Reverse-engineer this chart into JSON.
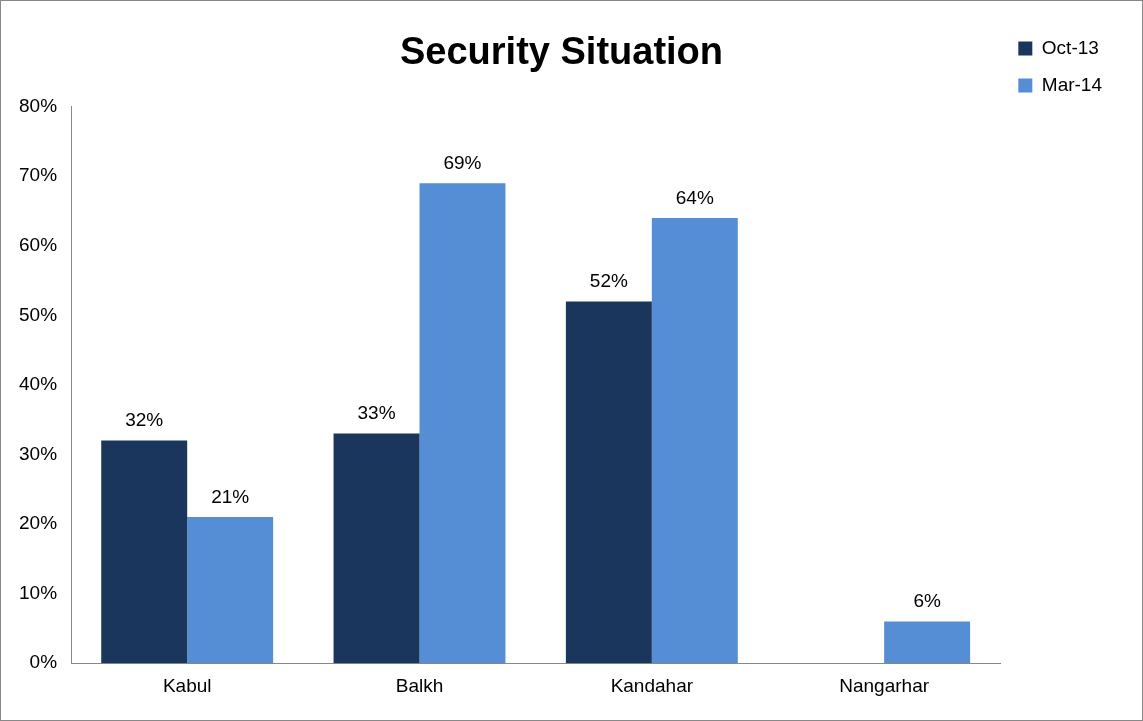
{
  "chart_data": {
    "type": "bar",
    "title": "Security Situation",
    "categories": [
      "Kabul",
      "Balkh",
      "Kandahar",
      "Nangarhar"
    ],
    "series": [
      {
        "name": "Oct-13",
        "color": "#1b365d",
        "values": [
          32,
          33,
          52,
          null
        ],
        "value_labels": [
          "32%",
          "33%",
          "52%",
          null
        ]
      },
      {
        "name": "Mar-14",
        "color": "#558ed5",
        "values": [
          21,
          69,
          64,
          6
        ],
        "value_labels": [
          "21%",
          "69%",
          "64%",
          "6%"
        ]
      }
    ],
    "ylim": [
      0,
      80
    ],
    "yticks": [
      {
        "value": 0,
        "label": "0%"
      },
      {
        "value": 10,
        "label": "10%"
      },
      {
        "value": 20,
        "label": "20%"
      },
      {
        "value": 30,
        "label": "30%"
      },
      {
        "value": 40,
        "label": "40%"
      },
      {
        "value": 50,
        "label": "50%"
      },
      {
        "value": 60,
        "label": "60%"
      },
      {
        "value": 70,
        "label": "70%"
      },
      {
        "value": 80,
        "label": "80%"
      }
    ],
    "grid": false,
    "legend": "top right"
  }
}
